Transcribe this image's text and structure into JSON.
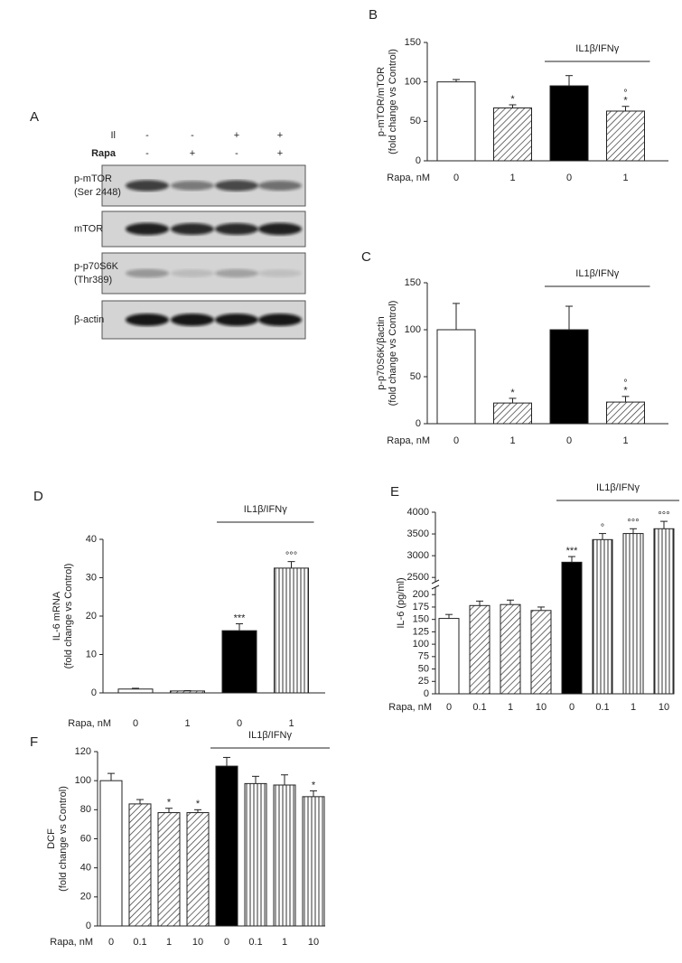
{
  "blot": {
    "panel_label": "A",
    "conditions": [
      {
        "label": "Il",
        "signs": [
          "-",
          "-",
          "+",
          "+"
        ]
      },
      {
        "label": "Rapa",
        "signs": [
          "-",
          "+",
          "-",
          "+"
        ]
      }
    ],
    "bands": [
      {
        "lines": [
          "p-mTOR",
          "(Ser 2448)"
        ]
      },
      {
        "lines": [
          "mTOR"
        ]
      },
      {
        "lines": [
          "p-p70S6K",
          "(Thr389)"
        ]
      },
      {
        "lines": [
          "β-actin"
        ]
      }
    ]
  },
  "chart_data": [
    {
      "type": "bar",
      "panel_label": "B",
      "y_label": [
        "p-mTOR/mTOR",
        "(fold change vs Control)"
      ],
      "x_label": "Rapa, nM",
      "categories": [
        "0",
        "1",
        "0",
        "1"
      ],
      "values": [
        100,
        67,
        95,
        63
      ],
      "errors": [
        3,
        4,
        13,
        6
      ],
      "patterns": [
        "white",
        "hatched",
        "black",
        "hatched"
      ],
      "ylim": [
        0,
        150
      ],
      "yticks": [
        0,
        50,
        100,
        150
      ],
      "marks": [
        {
          "bar": 1,
          "lines": [
            "*"
          ]
        },
        {
          "bar": 3,
          "lines": [
            "°",
            "*"
          ]
        }
      ],
      "bracket": {
        "label": "IL1β/IFNγ",
        "from": 2,
        "to": 3
      }
    },
    {
      "type": "bar",
      "panel_label": "C",
      "y_label": [
        "p-p70S6K/βactin",
        "(fold change vs Control)"
      ],
      "x_label": "Rapa, nM",
      "categories": [
        "0",
        "1",
        "0",
        "1"
      ],
      "values": [
        100,
        22,
        100,
        23
      ],
      "errors": [
        28,
        5,
        25,
        6
      ],
      "patterns": [
        "white",
        "hatched",
        "black",
        "hatched"
      ],
      "ylim": [
        0,
        150
      ],
      "yticks": [
        0,
        50,
        100,
        150
      ],
      "marks": [
        {
          "bar": 1,
          "lines": [
            "*"
          ]
        },
        {
          "bar": 3,
          "lines": [
            "°",
            "*"
          ]
        }
      ],
      "bracket": {
        "label": "IL1β/IFNγ",
        "from": 2,
        "to": 3
      }
    },
    {
      "type": "bar",
      "panel_label": "D",
      "y_label": [
        "IL-6 mRNA",
        "(fold change vs Control)"
      ],
      "x_label": "Rapa, nM",
      "categories": [
        "0",
        "1",
        "0",
        "1"
      ],
      "values": [
        1,
        0.5,
        16.2,
        32.5
      ],
      "errors": [
        0.2,
        0.1,
        1.8,
        1.7
      ],
      "patterns": [
        "white",
        "hatched",
        "black",
        "vertical"
      ],
      "ylim": [
        0,
        40
      ],
      "yticks": [
        0,
        10,
        20,
        30,
        40
      ],
      "marks": [
        {
          "bar": 2,
          "lines": [
            "***"
          ]
        },
        {
          "bar": 3,
          "lines": [
            "°°°"
          ]
        }
      ],
      "bracket": {
        "label": "IL1β/IFNγ",
        "from": 2,
        "to": 3
      }
    },
    {
      "type": "bar",
      "panel_label": "E",
      "y_label": [
        "IL-6 (pg/ml)"
      ],
      "x_label": "Rapa, nM",
      "categories": [
        "0",
        "0.1",
        "1",
        "10",
        "0",
        "0.1",
        "1",
        "10"
      ],
      "values": [
        152,
        178,
        180,
        168,
        2850,
        3370,
        3510,
        3620
      ],
      "errors": [
        8,
        9,
        9,
        7,
        130,
        140,
        110,
        170
      ],
      "patterns": [
        "white",
        "hatched",
        "hatched",
        "hatched",
        "black",
        "vertical",
        "vertical",
        "vertical"
      ],
      "ylim": [
        0,
        4000
      ],
      "ybreak": [
        215,
        2400
      ],
      "yticks": [
        0,
        25,
        50,
        75,
        100,
        125,
        150,
        175,
        200,
        2500,
        3000,
        3500,
        4000
      ],
      "marks": [
        {
          "bar": 4,
          "lines": [
            "***"
          ]
        },
        {
          "bar": 5,
          "lines": [
            "°"
          ]
        },
        {
          "bar": 6,
          "lines": [
            "°°°"
          ]
        },
        {
          "bar": 7,
          "lines": [
            "°°°"
          ]
        }
      ],
      "bracket": {
        "label": "IL1β/IFNγ",
        "from": 4,
        "to": 7
      }
    },
    {
      "type": "bar",
      "panel_label": "F",
      "y_label": [
        "DCF",
        "(fold change vs Control)"
      ],
      "x_label": "Rapa, nM",
      "categories": [
        "0",
        "0.1",
        "1",
        "10",
        "0",
        "0.1",
        "1",
        "10"
      ],
      "values": [
        100,
        84,
        78,
        78,
        110,
        98,
        97,
        89
      ],
      "errors": [
        5,
        3,
        3,
        2,
        6,
        5,
        7,
        4
      ],
      "patterns": [
        "white",
        "hatched",
        "hatched",
        "hatched",
        "black",
        "vertical",
        "vertical",
        "vertical"
      ],
      "ylim": [
        0,
        120
      ],
      "yticks": [
        0,
        20,
        40,
        60,
        80,
        100,
        120
      ],
      "marks": [
        {
          "bar": 2,
          "lines": [
            "*"
          ]
        },
        {
          "bar": 3,
          "lines": [
            "*"
          ]
        },
        {
          "bar": 7,
          "lines": [
            "*"
          ]
        }
      ],
      "bracket": {
        "label": "IL1β/IFNγ",
        "from": 4,
        "to": 7
      }
    }
  ]
}
